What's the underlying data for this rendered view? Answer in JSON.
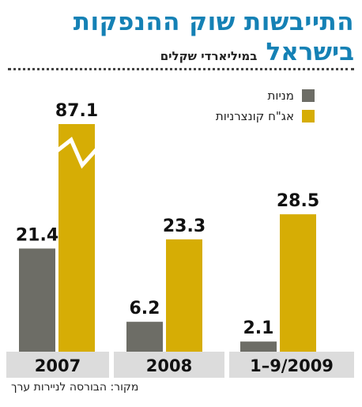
{
  "header": {
    "title": "התייבשות שוק ההנפקות",
    "subtitle": "בישראל",
    "unit": "במיליארדי שקלים"
  },
  "legend": [
    {
      "label": "מניות",
      "color": "#6d6d66"
    },
    {
      "label": "אג\"ח קונצרניות",
      "color": "#d6ad05"
    }
  ],
  "source": "מקור: הבורסה לניירות ערך",
  "colors": {
    "title": "#1581b5",
    "stocks": "#6d6d66",
    "bonds": "#d6ad05",
    "baseline_band": "#dcdcdc"
  },
  "chart_data": {
    "type": "bar",
    "categories": [
      "2007",
      "2008",
      "1–9/2009"
    ],
    "series": [
      {
        "name": "מניות",
        "values": [
          21.4,
          6.2,
          2.1
        ]
      },
      {
        "name": "אג\"ח קונצרניות",
        "values": [
          87.1,
          23.3,
          28.5
        ]
      }
    ],
    "value_labels": [
      [
        "21.4",
        "6.2",
        "2.1"
      ],
      [
        "87.1",
        "23.3",
        "28.5"
      ]
    ],
    "axis_break": {
      "series": 1,
      "category": 0
    },
    "ylim": [
      0,
      40
    ],
    "grid": false,
    "legend_position": "top-right"
  }
}
